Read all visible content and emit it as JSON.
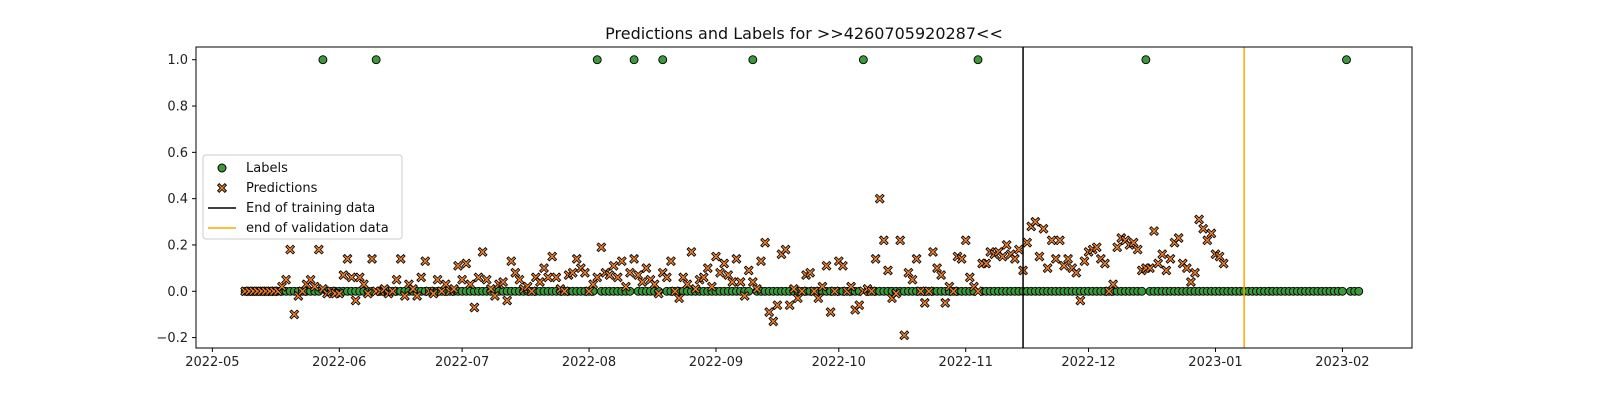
{
  "chart_data": {
    "type": "scatter",
    "title": "Predictions and Labels for >>4260705920287<<",
    "xlabel": "",
    "ylabel": "",
    "x_range": [
      "2022-04-27",
      "2023-02-18"
    ],
    "ylim": [
      -0.245,
      1.055
    ],
    "x_ticks": [
      {
        "date": "2022-05-01",
        "label": "2022-05"
      },
      {
        "date": "2022-06-01",
        "label": "2022-06"
      },
      {
        "date": "2022-07-01",
        "label": "2022-07"
      },
      {
        "date": "2022-08-01",
        "label": "2022-08"
      },
      {
        "date": "2022-09-01",
        "label": "2022-09"
      },
      {
        "date": "2022-10-01",
        "label": "2022-10"
      },
      {
        "date": "2022-11-01",
        "label": "2022-11"
      },
      {
        "date": "2022-12-01",
        "label": "2022-12"
      },
      {
        "date": "2023-01-01",
        "label": "2023-01"
      },
      {
        "date": "2023-02-01",
        "label": "2023-02"
      }
    ],
    "y_ticks": [
      {
        "value": -0.2,
        "label": "−0.2"
      },
      {
        "value": 0.0,
        "label": "0.0"
      },
      {
        "value": 0.2,
        "label": "0.2"
      },
      {
        "value": 0.4,
        "label": "0.4"
      },
      {
        "value": 0.6,
        "label": "0.6"
      },
      {
        "value": 0.8,
        "label": "0.8"
      },
      {
        "value": 1.0,
        "label": "1.0"
      }
    ],
    "grid": false,
    "legend_position": "center-left",
    "colors": {
      "labels_fill": "#3a9a3a",
      "predictions_fill": "#f07f2a",
      "marker_edge": "#000000",
      "end_training": "#000000",
      "end_validation": "#ffa500"
    },
    "label_series": {
      "name": "Labels",
      "start_date": "2022-05-09",
      "end_date": "2023-02-05",
      "default_value": 0,
      "positive_dates": [
        "2022-05-28",
        "2022-06-10",
        "2022-08-03",
        "2022-08-12",
        "2022-08-19",
        "2022-09-10",
        "2022-10-07",
        "2022-11-04",
        "2022-12-15",
        "2023-02-02"
      ]
    },
    "prediction_series": {
      "name": "Predictions",
      "start_date": "2022-05-09",
      "values": [
        0.0,
        0.0,
        0.0,
        0.0,
        0.0,
        0.0,
        0.0,
        0.0,
        0.0,
        0.02,
        0.05,
        0.18,
        -0.1,
        -0.02,
        0.0,
        0.03,
        0.05,
        0.02,
        0.18,
        0.01,
        -0.01,
        0.0,
        -0.01,
        -0.01,
        0.07,
        0.14,
        0.06,
        -0.04,
        0.06,
        0.03,
        -0.01,
        0.14,
        0.0,
        0.0,
        0.01,
        -0.01,
        0.0,
        0.05,
        0.14,
        -0.02,
        0.03,
        0.01,
        -0.02,
        0.06,
        0.13,
        0.0,
        -0.01,
        0.05,
        0.0,
        0.03,
        0.0,
        0.01,
        0.11,
        0.05,
        0.12,
        0.03,
        -0.07,
        0.06,
        0.17,
        0.05,
        0.01,
        -0.02,
        0.03,
        0.04,
        -0.04,
        0.13,
        0.08,
        0.05,
        0.01,
        0.02,
        0.0,
        0.06,
        0.04,
        0.1,
        0.06,
        0.15,
        0.06,
        0.01,
        0.0,
        0.07,
        0.08,
        0.14,
        0.1,
        0.08,
        0.0,
        0.03,
        0.06,
        0.19,
        0.08,
        0.07,
        0.11,
        0.06,
        0.13,
        0.02,
        0.08,
        0.14,
        0.07,
        0.04,
        0.1,
        0.05,
        0.03,
        -0.01,
        0.08,
        0.06,
        0.13,
        0.0,
        -0.03,
        0.06,
        0.03,
        0.17,
        0.01,
        0.05,
        0.06,
        0.1,
        0.02,
        0.15,
        0.08,
        0.12,
        0.07,
        0.04,
        0.14,
        0.04,
        -0.02,
        0.09,
        0.04,
        0.01,
        0.13,
        0.21,
        -0.09,
        -0.13,
        -0.06,
        0.16,
        0.18,
        -0.06,
        0.01,
        -0.03,
        0.0,
        0.07,
        0.08,
        0.0,
        -0.03,
        0.02,
        0.11,
        -0.09,
        0.0,
        0.13,
        0.11,
        0.0,
        0.02,
        -0.08,
        -0.06,
        0.0,
        0.01,
        0.0,
        0.14,
        0.4,
        0.22,
        0.09,
        -0.03,
        -0.01,
        0.22,
        -0.19,
        0.08,
        0.05,
        0.14,
        0.0,
        -0.05,
        0.0,
        0.17,
        0.1,
        0.07,
        -0.05,
        0.02,
        0.0,
        0.15,
        0.14,
        0.22,
        0.06,
        0.02,
        0.0,
        0.12,
        0.12,
        0.17,
        0.16,
        0.17,
        0.15,
        0.2,
        0.16,
        0.14,
        0.18,
        0.09,
        0.21,
        0.28,
        0.3,
        0.15,
        0.27,
        0.1,
        0.22,
        0.14,
        0.22,
        0.11,
        0.14,
        0.1,
        0.08,
        -0.04,
        0.13,
        0.17,
        0.18,
        0.19,
        0.14,
        0.12,
        0.0,
        0.03,
        0.19,
        0.23,
        0.22,
        0.2,
        0.21,
        0.18,
        0.09,
        0.1,
        0.1,
        0.26,
        0.12,
        0.16,
        0.09,
        0.14,
        0.21,
        0.23,
        0.12,
        0.1,
        0.04,
        0.08,
        0.31,
        0.27,
        0.22,
        0.25,
        0.16,
        0.15,
        0.12
      ]
    },
    "vertical_lines": [
      {
        "name": "End of training data",
        "date": "2022-11-15",
        "color": "#000000"
      },
      {
        "name": "end of validation data",
        "date": "2023-01-08",
        "color": "#ffa500"
      }
    ],
    "legend_entries": [
      {
        "label": "Labels",
        "kind": "circle-marker"
      },
      {
        "label": "Predictions",
        "kind": "x-marker"
      },
      {
        "label": "End of training data",
        "kind": "line-black"
      },
      {
        "label": "end of validation data",
        "kind": "line-orange"
      }
    ]
  }
}
